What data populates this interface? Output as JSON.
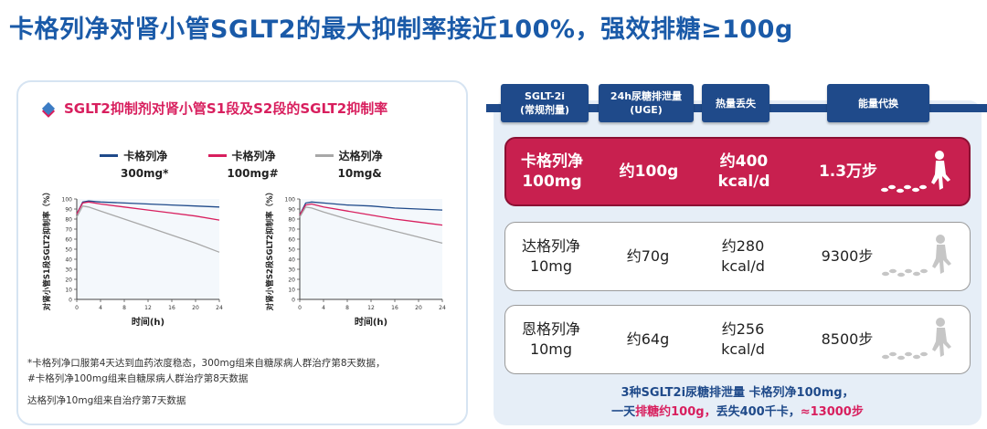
{
  "title": "卡格列净对肾小管SGLT2的最大抑制率接近100%，强效排糖≥100g",
  "left_panel": {
    "heading": "SGLT2抑制剂对肾小管S1段及S2段的SGLT2抑制率",
    "legend": [
      {
        "drug": "卡格列净",
        "dose": "300mg*",
        "color": "#1f4a8a"
      },
      {
        "drug": "卡格列净",
        "dose": "100mg#",
        "color": "#d81f5e"
      },
      {
        "drug": "达格列净",
        "dose": "10mg&",
        "color": "#a8a8a8"
      }
    ],
    "footnotes": [
      "*卡格列净口服第4天达到血药浓度稳态，300mg组来自糖尿病人群治疗第8天数据，",
      "#卡格列净100mg组来自糖尿病人群治疗第8天数据",
      "达格列净10mg组来自治疗第7天数据"
    ]
  },
  "chart_data": [
    {
      "type": "line",
      "ylabel": "对肾小管S1段SGLT2抑制率（%）",
      "xlabel": "时间(h)",
      "xticks": [
        0,
        4,
        8,
        12,
        16,
        20,
        24
      ],
      "yticks": [
        0,
        10,
        20,
        30,
        40,
        50,
        60,
        70,
        80,
        90,
        100
      ],
      "xlim": [
        0,
        24
      ],
      "ylim": [
        0,
        100
      ],
      "series": [
        {
          "name": "卡格列净 300mg*",
          "x": [
            0,
            1,
            2,
            4,
            8,
            12,
            16,
            20,
            24
          ],
          "y": [
            85,
            97,
            98,
            97,
            96,
            95,
            94,
            93,
            92
          ]
        },
        {
          "name": "卡格列净 100mg#",
          "x": [
            0,
            1,
            2,
            4,
            8,
            12,
            16,
            20,
            24
          ],
          "y": [
            85,
            96,
            97,
            95,
            92,
            89,
            86,
            83,
            79
          ]
        },
        {
          "name": "达格列净 10mg&",
          "x": [
            0,
            1,
            2,
            4,
            8,
            12,
            16,
            20,
            24
          ],
          "y": [
            82,
            93,
            92,
            88,
            80,
            72,
            64,
            56,
            47
          ]
        }
      ]
    },
    {
      "type": "line",
      "ylabel": "对肾小管S2段SGLT2抑制率（%）",
      "xlabel": "时间(h)",
      "xticks": [
        0,
        4,
        8,
        12,
        16,
        20,
        24
      ],
      "yticks": [
        0,
        10,
        20,
        30,
        40,
        50,
        60,
        70,
        80,
        90,
        100
      ],
      "xlim": [
        0,
        24
      ],
      "ylim": [
        0,
        100
      ],
      "series": [
        {
          "name": "卡格列净 300mg*",
          "x": [
            0,
            1,
            2,
            4,
            8,
            12,
            16,
            20,
            24
          ],
          "y": [
            84,
            96,
            97,
            96,
            94,
            93,
            91,
            90,
            89
          ]
        },
        {
          "name": "卡格列净 100mg#",
          "x": [
            0,
            1,
            2,
            4,
            8,
            12,
            16,
            20,
            24
          ],
          "y": [
            84,
            94,
            95,
            92,
            88,
            84,
            80,
            77,
            74
          ]
        },
        {
          "name": "达格列净 10mg&",
          "x": [
            0,
            1,
            2,
            4,
            8,
            12,
            16,
            20,
            24
          ],
          "y": [
            82,
            92,
            91,
            87,
            80,
            74,
            68,
            62,
            56
          ]
        }
      ]
    }
  ],
  "table": {
    "headers": [
      "SGLT-2i\n(常规剂量)",
      "24h尿糖排泄量\n(UGE)",
      "热量丢失",
      "能量代换"
    ],
    "rows": [
      {
        "drug": "卡格列净\n100mg",
        "uge": "约100g",
        "heat": "约400\nkcal/d",
        "steps": "1.3万步",
        "highlight": true
      },
      {
        "drug": "达格列净\n10mg",
        "uge": "约70g",
        "heat": "约280\nkcal/d",
        "steps": "9300步",
        "highlight": false
      },
      {
        "drug": "恩格列净\n10mg",
        "uge": "约64g",
        "heat": "约256\nkcal/d",
        "steps": "8500步",
        "highlight": false
      }
    ]
  },
  "summary": {
    "line1": "3种SGLT2i尿糖排泄量  卡格列净100mg，",
    "line2_a": "一天",
    "line2_b": "排糖约100g，",
    "line2_c": "丢失400千卡，",
    "line2_d": "≈13000步"
  }
}
